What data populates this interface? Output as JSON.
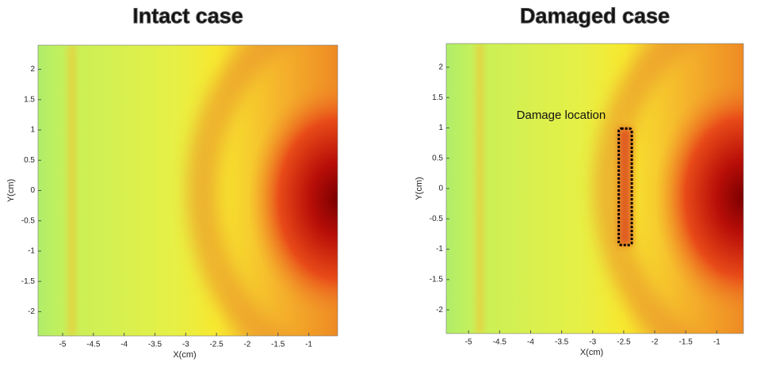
{
  "chart_data": [
    {
      "type": "heatmap",
      "title": "Intact case",
      "x_label": "X(cm)",
      "y_label": "Y(cm)",
      "xlim": [
        -5.4,
        -0.53
      ],
      "ylim": [
        -2.4,
        2.4
      ],
      "xticks": [
        -5,
        -4.5,
        -4,
        -3.5,
        -3,
        -2.5,
        -2,
        -1.5,
        -1
      ],
      "yticks": [
        2,
        1.5,
        1,
        0.5,
        0,
        -0.5,
        -1,
        -1.5,
        -2
      ]
    },
    {
      "type": "heatmap",
      "title": "Damaged case",
      "x_label": "X(cm)",
      "y_label": "Y(cm)",
      "xlim": [
        -5.36,
        -0.57
      ],
      "ylim": [
        -2.39,
        2.39
      ],
      "xticks": [
        -5,
        -4.5,
        -4,
        -3.5,
        -3,
        -2.5,
        -2,
        -1.5,
        -1
      ],
      "yticks": [
        2,
        1.5,
        1,
        0.5,
        0,
        -0.5,
        -1,
        -1.5,
        -2
      ],
      "annotation": {
        "text": "Damage location",
        "x": [
          -2.58,
          -2.37
        ],
        "y": [
          -0.93,
          0.99
        ]
      }
    }
  ]
}
